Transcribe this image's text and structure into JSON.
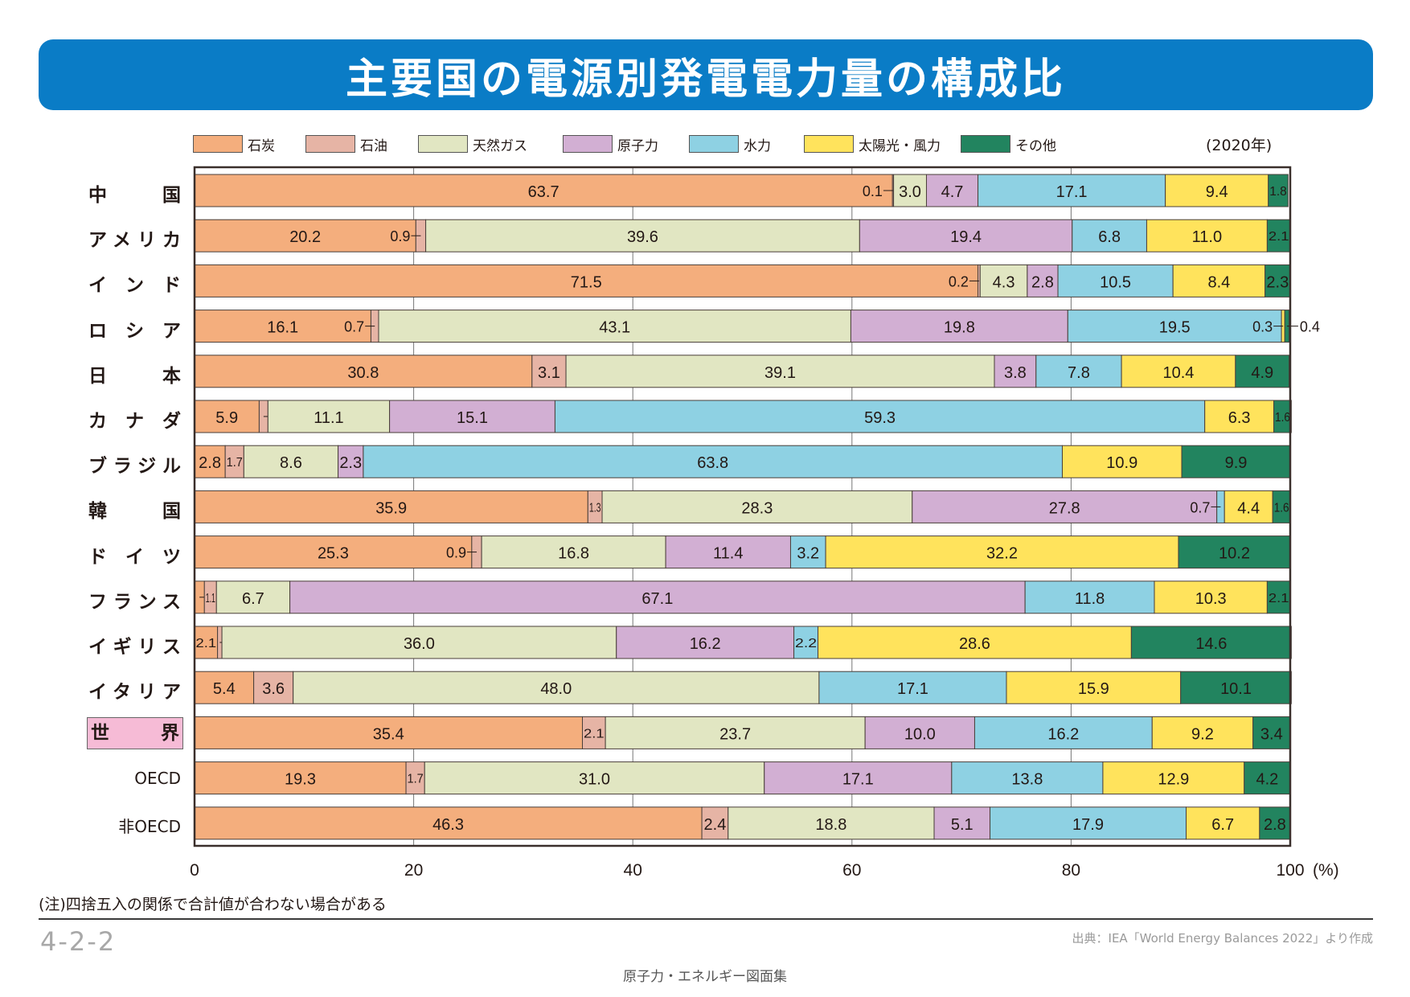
{
  "header": {
    "title": "主要国の電源別発電電力量の構成比"
  },
  "year_note": "(2020年)",
  "note": "(注)四捨五入の関係で合計値が合わない場合がある",
  "page_number": "4-2-2",
  "source": "出典：IEA「World Energy Balances 2022」より作成",
  "book_title": "原子力・エネルギー図面集",
  "chart_data": {
    "type": "bar",
    "orientation": "horizontal-stacked-100",
    "title": "主要国の電源別発電電力量の構成比",
    "xlabel": "(%)",
    "xlim": [
      0,
      100
    ],
    "xticks": [
      "0",
      "20",
      "40",
      "60",
      "80",
      "100"
    ],
    "grid": true,
    "legend_position": "top",
    "series_names": [
      "石炭",
      "石油",
      "天然ガス",
      "原子力",
      "水力",
      "太陽光・風力",
      "その他"
    ],
    "colors": [
      "#f4ae7d",
      "#e6b4a5",
      "#e1e6c2",
      "#d2afd3",
      "#8ed1e3",
      "#ffe35c",
      "#22845f"
    ],
    "categories": [
      "中　　国",
      "アメリカ",
      "イ ン ド",
      "ロ シ ア",
      "日　　本",
      "カ ナ ダ",
      "ブラジル",
      "韓　　国",
      "ド イ ツ",
      "フランス",
      "イギリス",
      "イタリア",
      "世　　界",
      "OECD",
      "非OECD"
    ],
    "highlight_category": "世　　界",
    "highlight_color": "#f6bbd6",
    "rows": [
      {
        "name": "中国",
        "values": [
          63.7,
          0.1,
          3.0,
          4.7,
          17.1,
          9.4,
          1.8
        ]
      },
      {
        "name": "アメリカ",
        "values": [
          20.2,
          0.9,
          39.6,
          19.4,
          6.8,
          11.0,
          2.1
        ]
      },
      {
        "name": "インド",
        "values": [
          71.5,
          0.2,
          4.3,
          2.8,
          10.5,
          8.4,
          2.3
        ]
      },
      {
        "name": "ロシア",
        "values": [
          16.1,
          0.7,
          43.1,
          19.8,
          19.5,
          0.3,
          0.4
        ]
      },
      {
        "name": "日本",
        "values": [
          30.8,
          3.1,
          39.1,
          3.8,
          7.8,
          10.4,
          4.9
        ]
      },
      {
        "name": "カナダ",
        "values": [
          5.9,
          0.8,
          11.1,
          15.1,
          59.3,
          6.3,
          1.6
        ]
      },
      {
        "name": "ブラジル",
        "values": [
          2.8,
          1.7,
          8.6,
          2.3,
          63.8,
          10.9,
          9.9
        ]
      },
      {
        "name": "韓国",
        "values": [
          35.9,
          1.3,
          28.3,
          27.8,
          0.7,
          4.4,
          1.6
        ]
      },
      {
        "name": "ドイツ",
        "values": [
          25.3,
          0.9,
          16.8,
          11.4,
          3.2,
          32.2,
          10.2
        ]
      },
      {
        "name": "フランス",
        "values": [
          0.9,
          1.1,
          6.7,
          67.1,
          11.8,
          10.3,
          2.1
        ]
      },
      {
        "name": "イギリス",
        "values": [
          2.1,
          0.4,
          36.0,
          16.2,
          2.2,
          28.6,
          14.6
        ]
      },
      {
        "name": "イタリア",
        "values": [
          5.4,
          3.6,
          48.0,
          0,
          17.1,
          15.9,
          10.1
        ]
      },
      {
        "name": "世界",
        "values": [
          35.4,
          2.1,
          23.7,
          10.0,
          16.2,
          9.2,
          3.4
        ]
      },
      {
        "name": "OECD",
        "values": [
          19.3,
          1.7,
          31.0,
          17.1,
          13.8,
          12.9,
          4.2
        ]
      },
      {
        "name": "非OECD",
        "values": [
          46.3,
          2.4,
          18.8,
          5.1,
          17.9,
          6.7,
          2.8
        ]
      }
    ],
    "display_labels": [
      [
        "63.7",
        "0.1",
        "3.0",
        "4.7",
        "17.1",
        "9.4",
        "1.8"
      ],
      [
        "20.2",
        "0.9",
        "39.6",
        "19.4",
        "6.8",
        "11.0",
        "2.1"
      ],
      [
        "71.5",
        "0.2",
        "4.3",
        "2.8",
        "10.5",
        "8.4",
        "2.3"
      ],
      [
        "16.1",
        "0.7",
        "43.1",
        "19.8",
        "19.5",
        "0.3",
        "0.4"
      ],
      [
        "30.8",
        "3.1",
        "39.1",
        "3.8",
        "7.8",
        "10.4",
        "4.9"
      ],
      [
        "5.9",
        "0.8",
        "11.1",
        "15.1",
        "59.3",
        "6.3",
        "1.6"
      ],
      [
        "2.8",
        "1.7",
        "8.6",
        "2.3",
        "63.8",
        "10.9",
        "9.9"
      ],
      [
        "35.9",
        "1.3",
        "28.3",
        "27.8",
        "0.7",
        "4.4",
        "1.6"
      ],
      [
        "25.3",
        "0.9",
        "16.8",
        "11.4",
        "3.2",
        "32.2",
        "10.2"
      ],
      [
        "0.9",
        "1.1",
        "6.7",
        "67.1",
        "11.8",
        "10.3",
        "2.1"
      ],
      [
        "2.1",
        "0.4",
        "36.0",
        "16.2",
        "2.2",
        "28.6",
        "14.6"
      ],
      [
        "5.4",
        "3.6",
        "48.0",
        "",
        "17.1",
        "15.9",
        "10.1"
      ],
      [
        "35.4",
        "2.1",
        "23.7",
        "10.0",
        "16.2",
        "9.2",
        "3.4"
      ],
      [
        "19.3",
        "1.7",
        "31.0",
        "17.1",
        "13.8",
        "12.9",
        "4.2"
      ],
      [
        "46.3",
        "2.4",
        "18.8",
        "5.1",
        "17.9",
        "6.7",
        "2.8"
      ]
    ]
  }
}
